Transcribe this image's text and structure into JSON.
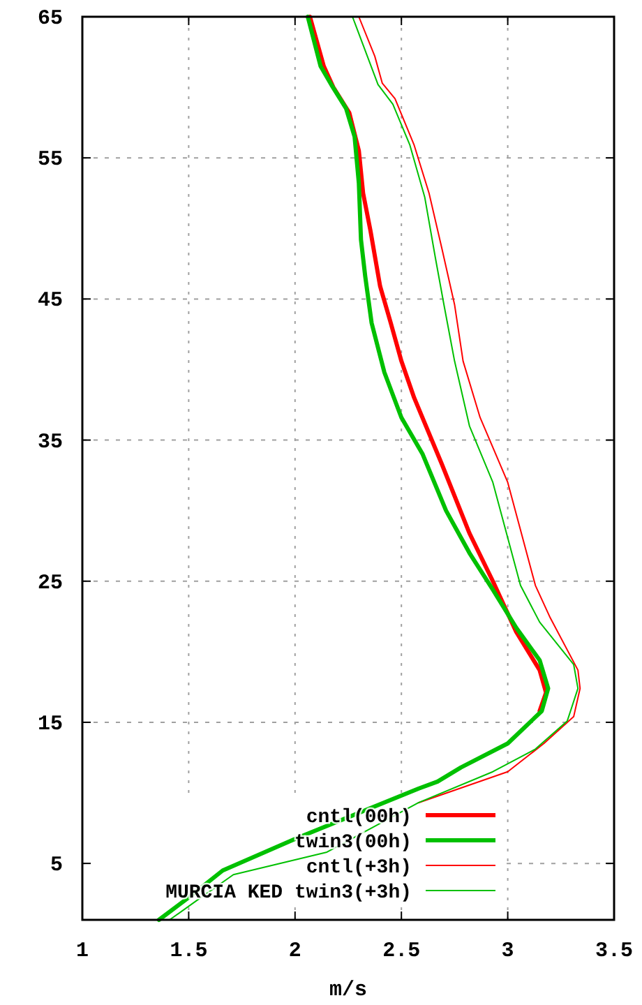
{
  "chart_data": {
    "type": "line",
    "xlabel": "m/s",
    "xlim": [
      1,
      3.5
    ],
    "ylim": [
      1,
      65
    ],
    "xticks": [
      1,
      1.5,
      2,
      2.5,
      3,
      3.5
    ],
    "yticks": [
      5,
      15,
      25,
      35,
      45,
      55,
      65
    ],
    "grid": true,
    "legend": "bottom right",
    "marker": "none",
    "line_style": "solid",
    "series": [
      {
        "name": "cntl(00h)",
        "color": "#ff0000",
        "x": [
          3.15,
          3.18,
          3.15,
          3.04,
          2.93,
          2.82,
          2.69,
          2.56,
          2.5,
          2.45,
          2.4,
          2.355,
          2.32,
          2.3,
          2.255,
          2.18,
          2.135,
          2.07
        ],
        "values": [
          15.8,
          17.1,
          18.7,
          21.4,
          25,
          28.4,
          33.3,
          38,
          40.6,
          43.3,
          45.9,
          49.8,
          52.5,
          55.5,
          58.2,
          60,
          61.5,
          65
        ]
      },
      {
        "name": "twin3(00h)",
        "color": "#00c000",
        "x": [
          1.36,
          1.51,
          1.66,
          2.01,
          2.58,
          2.67,
          2.78,
          3.0,
          3.16,
          3.19,
          3.15,
          3.04,
          2.93,
          2.82,
          2.71,
          2.6,
          2.5,
          2.42,
          2.36,
          2.33,
          2.31,
          2.3,
          2.28,
          2.24,
          2.17,
          2.12,
          2.06
        ],
        "values": [
          1,
          2.7,
          4.5,
          6.8,
          10.3,
          10.8,
          11.8,
          13.5,
          15.8,
          17.4,
          19.4,
          21.7,
          24.4,
          27,
          30,
          34,
          36.6,
          39.8,
          43.3,
          46.6,
          49.2,
          53.2,
          56.5,
          58.5,
          60.2,
          61.5,
          65
        ]
      },
      {
        "name": "cntl(+3h)",
        "color": "#ff0000",
        "x": [
          2.58,
          3.0,
          3.17,
          3.31,
          3.34,
          3.33,
          3.2,
          3.13,
          3.0,
          2.87,
          2.79,
          2.75,
          2.69,
          2.63,
          2.56,
          2.47,
          2.41,
          2.375,
          2.3
        ],
        "values": [
          9.3,
          11.5,
          13.5,
          15.4,
          17.4,
          18.7,
          22.4,
          24.7,
          32,
          36.6,
          40.6,
          44.6,
          48.6,
          52.5,
          55.9,
          59.2,
          60.3,
          62.2,
          65
        ]
      },
      {
        "name": "MURCIA KED twin3(+3h)",
        "color": "#00c000",
        "x": [
          1.41,
          1.55,
          1.71,
          2.15,
          2.58,
          2.93,
          3.13,
          3.28,
          3.33,
          3.31,
          3.15,
          3.06,
          2.93,
          2.82,
          2.75,
          2.7,
          2.66,
          2.61,
          2.54,
          2.46,
          2.39,
          2.34,
          2.27
        ],
        "values": [
          1,
          2.5,
          4.2,
          5.8,
          9.3,
          11.5,
          13.1,
          15.1,
          17.4,
          19.1,
          22.1,
          24.7,
          32,
          36,
          40.6,
          44.6,
          47.9,
          52.2,
          55.9,
          58.8,
          60.2,
          62.2,
          65
        ]
      }
    ]
  }
}
